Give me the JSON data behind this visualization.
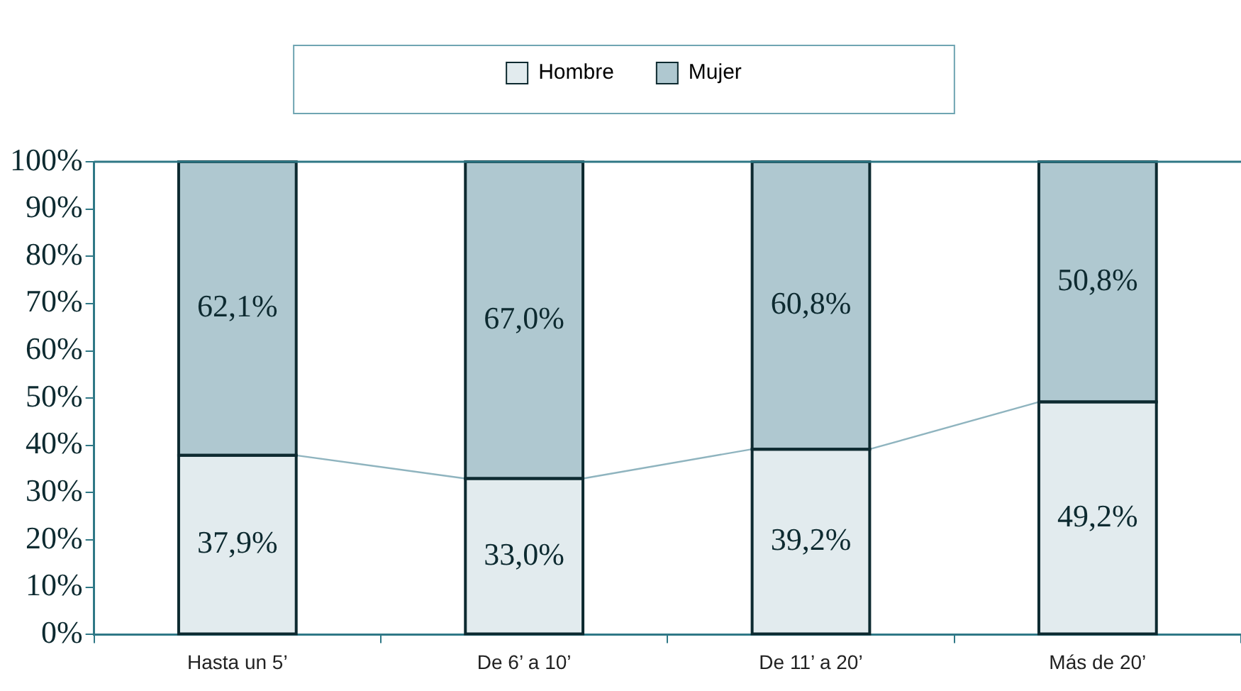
{
  "chart_data": {
    "type": "bar",
    "stacked": true,
    "categories": [
      "Hasta un 5’",
      "De 6’ a 10’",
      "De 11’ a 20’",
      "Más de 20’"
    ],
    "series": [
      {
        "name": "Hombre",
        "color": "#e2ebee",
        "values": [
          37.9,
          33.0,
          39.2,
          49.2
        ],
        "value_labels": [
          "37,9%",
          "33,0%",
          "39,2%",
          "49,2%"
        ]
      },
      {
        "name": "Mujer",
        "color": "#afc8d0",
        "values": [
          62.1,
          67.0,
          60.8,
          50.8
        ],
        "value_labels": [
          "62,1%",
          "67,0%",
          "60,8%",
          "50,8%"
        ]
      }
    ],
    "ylim": [
      0,
      100
    ],
    "yticks": [
      {
        "value": 0,
        "label": "0%"
      },
      {
        "value": 10,
        "label": "10%"
      },
      {
        "value": 20,
        "label": "20%"
      },
      {
        "value": 30,
        "label": "30%"
      },
      {
        "value": 40,
        "label": "40%"
      },
      {
        "value": 50,
        "label": "50%"
      },
      {
        "value": 60,
        "label": "60%"
      },
      {
        "value": 70,
        "label": "70%"
      },
      {
        "value": 80,
        "label": "80%"
      },
      {
        "value": 90,
        "label": "90%"
      },
      {
        "value": 100,
        "label": "100%"
      }
    ],
    "grid": false,
    "legend": "top"
  }
}
